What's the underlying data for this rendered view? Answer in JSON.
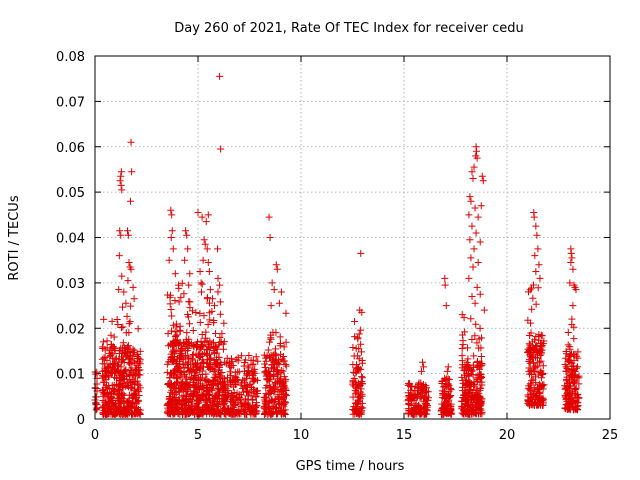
{
  "chart_data": {
    "type": "scatter",
    "title": "Day 260 of 2021, Rate Of TEC Index for receiver cedu",
    "xlabel": "GPS time / hours",
    "ylabel": "ROTI / TECUs",
    "xlim": [
      0,
      25
    ],
    "ylim": [
      0,
      0.08
    ],
    "xticks": [
      "0",
      "5",
      "10",
      "15",
      "20",
      "25"
    ],
    "yticks": [
      "0",
      "0.01",
      "0.02",
      "0.03",
      "0.04",
      "0.05",
      "0.06",
      "0.07",
      "0.08"
    ],
    "grid": true,
    "marker": "+",
    "color": "#e00000",
    "clusters": [
      {
        "x_range": [
          0.0,
          0.1
        ],
        "y_range": [
          0.002,
          0.011
        ],
        "n": 20
      },
      {
        "x_range": [
          0.35,
          2.2
        ],
        "y_range": [
          0.001,
          0.016
        ],
        "n": 420
      },
      {
        "x_range": [
          0.35,
          2.2
        ],
        "y_range": [
          0.015,
          0.025
        ],
        "n": 30
      },
      {
        "x_range": [
          3.5,
          6.3
        ],
        "y_range": [
          0.001,
          0.017
        ],
        "n": 620
      },
      {
        "x_range": [
          3.5,
          6.3
        ],
        "y_range": [
          0.016,
          0.03
        ],
        "n": 80
      },
      {
        "x_range": [
          6.3,
          7.9
        ],
        "y_range": [
          0.001,
          0.014
        ],
        "n": 240
      },
      {
        "x_range": [
          8.2,
          9.3
        ],
        "y_range": [
          0.001,
          0.014
        ],
        "n": 200
      },
      {
        "x_range": [
          8.2,
          9.3
        ],
        "y_range": [
          0.014,
          0.024
        ],
        "n": 20
      },
      {
        "x_range": [
          12.5,
          13.0
        ],
        "y_range": [
          0.001,
          0.012
        ],
        "n": 80
      },
      {
        "x_range": [
          12.5,
          13.0
        ],
        "y_range": [
          0.012,
          0.022
        ],
        "n": 15
      },
      {
        "x_range": [
          15.2,
          16.2
        ],
        "y_range": [
          0.001,
          0.008
        ],
        "n": 140
      },
      {
        "x_range": [
          16.8,
          17.3
        ],
        "y_range": [
          0.001,
          0.009
        ],
        "n": 90
      },
      {
        "x_range": [
          17.8,
          18.8
        ],
        "y_range": [
          0.001,
          0.012
        ],
        "n": 200
      },
      {
        "x_range": [
          17.8,
          18.8
        ],
        "y_range": [
          0.012,
          0.025
        ],
        "n": 30
      },
      {
        "x_range": [
          21.0,
          21.8
        ],
        "y_range": [
          0.003,
          0.016
        ],
        "n": 150
      },
      {
        "x_range": [
          21.0,
          21.8
        ],
        "y_range": [
          0.016,
          0.03
        ],
        "n": 30
      },
      {
        "x_range": [
          22.8,
          23.5
        ],
        "y_range": [
          0.002,
          0.014
        ],
        "n": 130
      },
      {
        "x_range": [
          22.8,
          23.5
        ],
        "y_range": [
          0.014,
          0.022
        ],
        "n": 15
      }
    ],
    "points": [
      {
        "x": 1.22,
        "y": 0.0525
      },
      {
        "x": 1.25,
        "y": 0.0535
      },
      {
        "x": 1.28,
        "y": 0.0545
      },
      {
        "x": 1.3,
        "y": 0.0505
      },
      {
        "x": 1.27,
        "y": 0.0515
      },
      {
        "x": 1.75,
        "y": 0.061
      },
      {
        "x": 1.78,
        "y": 0.0545
      },
      {
        "x": 1.72,
        "y": 0.048
      },
      {
        "x": 1.2,
        "y": 0.0415
      },
      {
        "x": 1.25,
        "y": 0.0405
      },
      {
        "x": 1.58,
        "y": 0.0415
      },
      {
        "x": 1.62,
        "y": 0.0405
      },
      {
        "x": 1.65,
        "y": 0.0345
      },
      {
        "x": 1.7,
        "y": 0.0335
      },
      {
        "x": 1.75,
        "y": 0.033
      },
      {
        "x": 1.18,
        "y": 0.036
      },
      {
        "x": 1.3,
        "y": 0.0315
      },
      {
        "x": 1.4,
        "y": 0.028
      },
      {
        "x": 1.15,
        "y": 0.0285
      },
      {
        "x": 1.6,
        "y": 0.0305
      },
      {
        "x": 1.85,
        "y": 0.029
      },
      {
        "x": 1.5,
        "y": 0.0255
      },
      {
        "x": 1.9,
        "y": 0.0265
      },
      {
        "x": 3.68,
        "y": 0.046
      },
      {
        "x": 3.72,
        "y": 0.045
      },
      {
        "x": 3.75,
        "y": 0.0415
      },
      {
        "x": 3.7,
        "y": 0.04
      },
      {
        "x": 3.8,
        "y": 0.0375
      },
      {
        "x": 3.6,
        "y": 0.035
      },
      {
        "x": 3.9,
        "y": 0.032
      },
      {
        "x": 4.05,
        "y": 0.0295
      },
      {
        "x": 4.4,
        "y": 0.0415
      },
      {
        "x": 4.45,
        "y": 0.0405
      },
      {
        "x": 4.5,
        "y": 0.0375
      },
      {
        "x": 4.35,
        "y": 0.035
      },
      {
        "x": 4.6,
        "y": 0.032
      },
      {
        "x": 4.55,
        "y": 0.0295
      },
      {
        "x": 5.0,
        "y": 0.0455
      },
      {
        "x": 5.2,
        "y": 0.0445
      },
      {
        "x": 5.5,
        "y": 0.045
      },
      {
        "x": 5.4,
        "y": 0.0435
      },
      {
        "x": 5.3,
        "y": 0.0395
      },
      {
        "x": 5.35,
        "y": 0.0385
      },
      {
        "x": 5.45,
        "y": 0.0375
      },
      {
        "x": 5.25,
        "y": 0.035
      },
      {
        "x": 5.5,
        "y": 0.0345
      },
      {
        "x": 5.55,
        "y": 0.0325
      },
      {
        "x": 5.1,
        "y": 0.0325
      },
      {
        "x": 5.15,
        "y": 0.03
      },
      {
        "x": 5.6,
        "y": 0.0285
      },
      {
        "x": 5.7,
        "y": 0.0265
      },
      {
        "x": 5.45,
        "y": 0.0265
      },
      {
        "x": 5.8,
        "y": 0.025
      },
      {
        "x": 5.95,
        "y": 0.0375
      },
      {
        "x": 5.97,
        "y": 0.031
      },
      {
        "x": 6.05,
        "y": 0.0295
      },
      {
        "x": 6.05,
        "y": 0.0755
      },
      {
        "x": 6.1,
        "y": 0.0595
      },
      {
        "x": 8.45,
        "y": 0.0445
      },
      {
        "x": 8.5,
        "y": 0.04
      },
      {
        "x": 8.8,
        "y": 0.034
      },
      {
        "x": 8.85,
        "y": 0.033
      },
      {
        "x": 8.6,
        "y": 0.03
      },
      {
        "x": 8.7,
        "y": 0.0285
      },
      {
        "x": 9.05,
        "y": 0.028
      },
      {
        "x": 8.55,
        "y": 0.025
      },
      {
        "x": 8.95,
        "y": 0.0255
      },
      {
        "x": 12.9,
        "y": 0.0365
      },
      {
        "x": 12.85,
        "y": 0.024
      },
      {
        "x": 12.95,
        "y": 0.0235
      },
      {
        "x": 12.6,
        "y": 0.0215
      },
      {
        "x": 15.9,
        "y": 0.0125
      },
      {
        "x": 15.95,
        "y": 0.0115
      },
      {
        "x": 15.85,
        "y": 0.0105
      },
      {
        "x": 16.98,
        "y": 0.031
      },
      {
        "x": 17.0,
        "y": 0.0295
      },
      {
        "x": 17.05,
        "y": 0.025
      },
      {
        "x": 17.15,
        "y": 0.0115
      },
      {
        "x": 17.1,
        "y": 0.0105
      },
      {
        "x": 18.5,
        "y": 0.06
      },
      {
        "x": 18.52,
        "y": 0.059
      },
      {
        "x": 18.48,
        "y": 0.058
      },
      {
        "x": 18.55,
        "y": 0.0575
      },
      {
        "x": 18.4,
        "y": 0.0555
      },
      {
        "x": 18.3,
        "y": 0.0545
      },
      {
        "x": 18.35,
        "y": 0.053
      },
      {
        "x": 18.8,
        "y": 0.0535
      },
      {
        "x": 18.85,
        "y": 0.0525
      },
      {
        "x": 18.2,
        "y": 0.049
      },
      {
        "x": 18.25,
        "y": 0.048
      },
      {
        "x": 18.45,
        "y": 0.0465
      },
      {
        "x": 18.15,
        "y": 0.045
      },
      {
        "x": 18.75,
        "y": 0.047
      },
      {
        "x": 18.6,
        "y": 0.0445
      },
      {
        "x": 18.3,
        "y": 0.0425
      },
      {
        "x": 18.5,
        "y": 0.041
      },
      {
        "x": 18.2,
        "y": 0.0395
      },
      {
        "x": 18.7,
        "y": 0.039
      },
      {
        "x": 18.4,
        "y": 0.0375
      },
      {
        "x": 18.25,
        "y": 0.0355
      },
      {
        "x": 18.6,
        "y": 0.0345
      },
      {
        "x": 18.35,
        "y": 0.0335
      },
      {
        "x": 18.15,
        "y": 0.031
      },
      {
        "x": 18.55,
        "y": 0.029
      },
      {
        "x": 18.7,
        "y": 0.0275
      },
      {
        "x": 18.3,
        "y": 0.027
      },
      {
        "x": 18.45,
        "y": 0.0255
      },
      {
        "x": 18.9,
        "y": 0.024
      },
      {
        "x": 21.3,
        "y": 0.0455
      },
      {
        "x": 21.32,
        "y": 0.0445
      },
      {
        "x": 21.4,
        "y": 0.0425
      },
      {
        "x": 21.45,
        "y": 0.0405
      },
      {
        "x": 21.5,
        "y": 0.0375
      },
      {
        "x": 21.35,
        "y": 0.036
      },
      {
        "x": 21.55,
        "y": 0.034
      },
      {
        "x": 21.4,
        "y": 0.0325
      },
      {
        "x": 21.6,
        "y": 0.031
      },
      {
        "x": 23.1,
        "y": 0.0375
      },
      {
        "x": 23.12,
        "y": 0.0365
      },
      {
        "x": 23.15,
        "y": 0.0355
      },
      {
        "x": 23.1,
        "y": 0.0345
      },
      {
        "x": 23.2,
        "y": 0.033
      },
      {
        "x": 23.05,
        "y": 0.03
      },
      {
        "x": 23.25,
        "y": 0.0295
      },
      {
        "x": 23.3,
        "y": 0.029
      },
      {
        "x": 23.35,
        "y": 0.0285
      },
      {
        "x": 23.2,
        "y": 0.025
      },
      {
        "x": 23.15,
        "y": 0.022
      }
    ]
  }
}
